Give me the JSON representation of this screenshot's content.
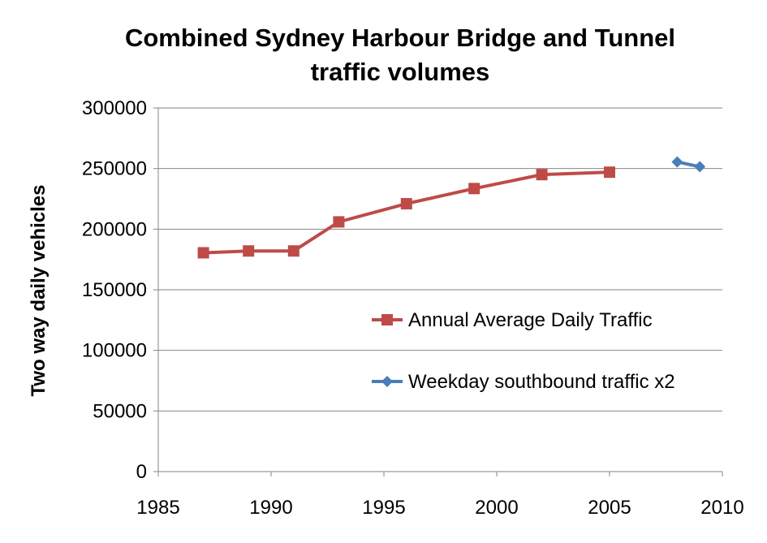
{
  "chart_data": {
    "type": "line",
    "title_lines": [
      "Combined Sydney Harbour Bridge and Tunnel",
      "traffic volumes"
    ],
    "xlabel": "",
    "ylabel": "Two way daily vehicles",
    "xlim": [
      1985,
      2010
    ],
    "ylim": [
      0,
      300000
    ],
    "xticks": [
      1985,
      1990,
      1995,
      2000,
      2005,
      2010
    ],
    "yticks": [
      0,
      50000,
      100000,
      150000,
      200000,
      250000,
      300000
    ],
    "grid": "horizontal",
    "legend_position": "center-right",
    "series": [
      {
        "name": "Annual Average Daily Traffic",
        "color": "#BE4B48",
        "marker": "square",
        "x": [
          1987,
          1989,
          1991,
          1993,
          1996,
          1999,
          2002,
          2005
        ],
        "y": [
          180500,
          182000,
          182000,
          206000,
          221000,
          233500,
          245000,
          247000
        ]
      },
      {
        "name": "Weekday southbound traffic x2",
        "color": "#4A7EBB",
        "marker": "diamond",
        "x": [
          2008,
          2009
        ],
        "y": [
          255500,
          251500
        ]
      }
    ]
  }
}
